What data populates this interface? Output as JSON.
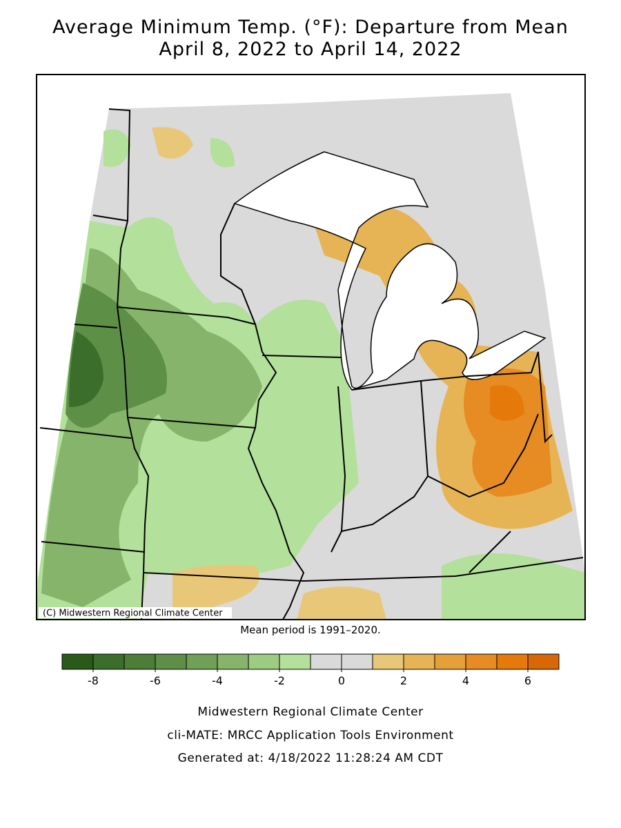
{
  "title": [
    "Average Minimum Temp. (°F): Departure from Mean",
    "April 8, 2022 to April 14, 2022"
  ],
  "map": {
    "credit": "(C) Midwestern Regional Climate Center"
  },
  "note": "Mean period is 1991–2020.",
  "legend": {
    "bounds": [
      -9,
      -8,
      -7,
      -6,
      -5,
      -4,
      -3,
      -2,
      -1,
      0,
      1,
      2,
      3,
      4,
      5,
      6,
      7
    ],
    "colors": [
      "#2a5a1a",
      "#3b6e2a",
      "#4c7e38",
      "#5e8f47",
      "#70a057",
      "#86b46a",
      "#9ccb82",
      "#b3e09a",
      "#dadada",
      "#dadada",
      "#e8c878",
      "#e7b455",
      "#e6a03a",
      "#e68c22",
      "#e57a0a",
      "#d86805"
    ],
    "ticks": [
      -8,
      -6,
      -4,
      -2,
      0,
      2,
      4,
      6
    ]
  },
  "footer": [
    "Midwestern Regional Climate Center",
    "cli-MATE: MRCC Application Tools Environment",
    "Generated at: 4/18/2022 11:28:24 AM CDT"
  ]
}
